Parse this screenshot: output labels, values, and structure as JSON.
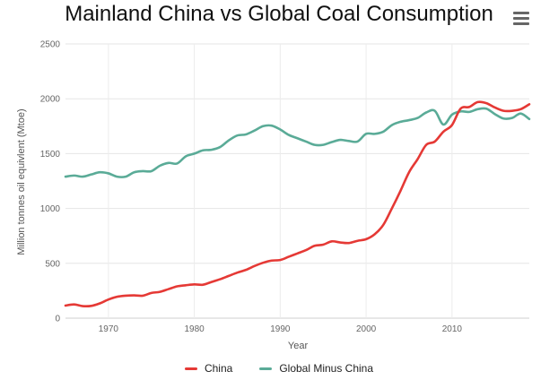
{
  "chart_data": {
    "type": "line",
    "title": "Mainland China vs Global Coal Consumption",
    "xlabel": "Year",
    "ylabel": "Million tonnes oil equivlent (Mtoe)",
    "xlim": [
      1965,
      2019
    ],
    "ylim": [
      0,
      2500
    ],
    "x_ticks": [
      1970,
      1980,
      1990,
      2000,
      2010
    ],
    "y_ticks": [
      0,
      500,
      1000,
      1500,
      2000,
      2500
    ],
    "grid": true,
    "legend_position": "bottom",
    "x": [
      1965,
      1966,
      1967,
      1968,
      1969,
      1970,
      1971,
      1972,
      1973,
      1974,
      1975,
      1976,
      1977,
      1978,
      1979,
      1980,
      1981,
      1982,
      1983,
      1984,
      1985,
      1986,
      1987,
      1988,
      1989,
      1990,
      1991,
      1992,
      1993,
      1994,
      1995,
      1996,
      1997,
      1998,
      1999,
      2000,
      2001,
      2002,
      2003,
      2004,
      2005,
      2006,
      2007,
      2008,
      2009,
      2010,
      2011,
      2012,
      2013,
      2014,
      2015,
      2016,
      2017,
      2018,
      2019
    ],
    "series": [
      {
        "name": "China",
        "color": "#e53935",
        "values": [
          115,
          125,
          110,
          112,
          135,
          170,
          195,
          205,
          208,
          205,
          230,
          240,
          265,
          290,
          300,
          308,
          305,
          330,
          355,
          385,
          415,
          440,
          475,
          505,
          525,
          530,
          560,
          590,
          620,
          660,
          670,
          700,
          690,
          685,
          705,
          720,
          765,
          850,
          1000,
          1160,
          1330,
          1450,
          1580,
          1610,
          1700,
          1760,
          1910,
          1925,
          1970,
          1960,
          1920,
          1890,
          1890,
          1905,
          1950
        ]
      },
      {
        "name": "Global Minus China",
        "color": "#5aab97",
        "values": [
          1290,
          1300,
          1290,
          1310,
          1330,
          1320,
          1290,
          1290,
          1330,
          1340,
          1340,
          1390,
          1415,
          1410,
          1475,
          1500,
          1530,
          1535,
          1560,
          1620,
          1665,
          1675,
          1710,
          1750,
          1755,
          1720,
          1670,
          1640,
          1610,
          1580,
          1580,
          1605,
          1625,
          1615,
          1610,
          1680,
          1680,
          1700,
          1760,
          1790,
          1805,
          1825,
          1875,
          1890,
          1765,
          1855,
          1885,
          1880,
          1905,
          1910,
          1860,
          1820,
          1825,
          1865,
          1815
        ]
      }
    ]
  }
}
